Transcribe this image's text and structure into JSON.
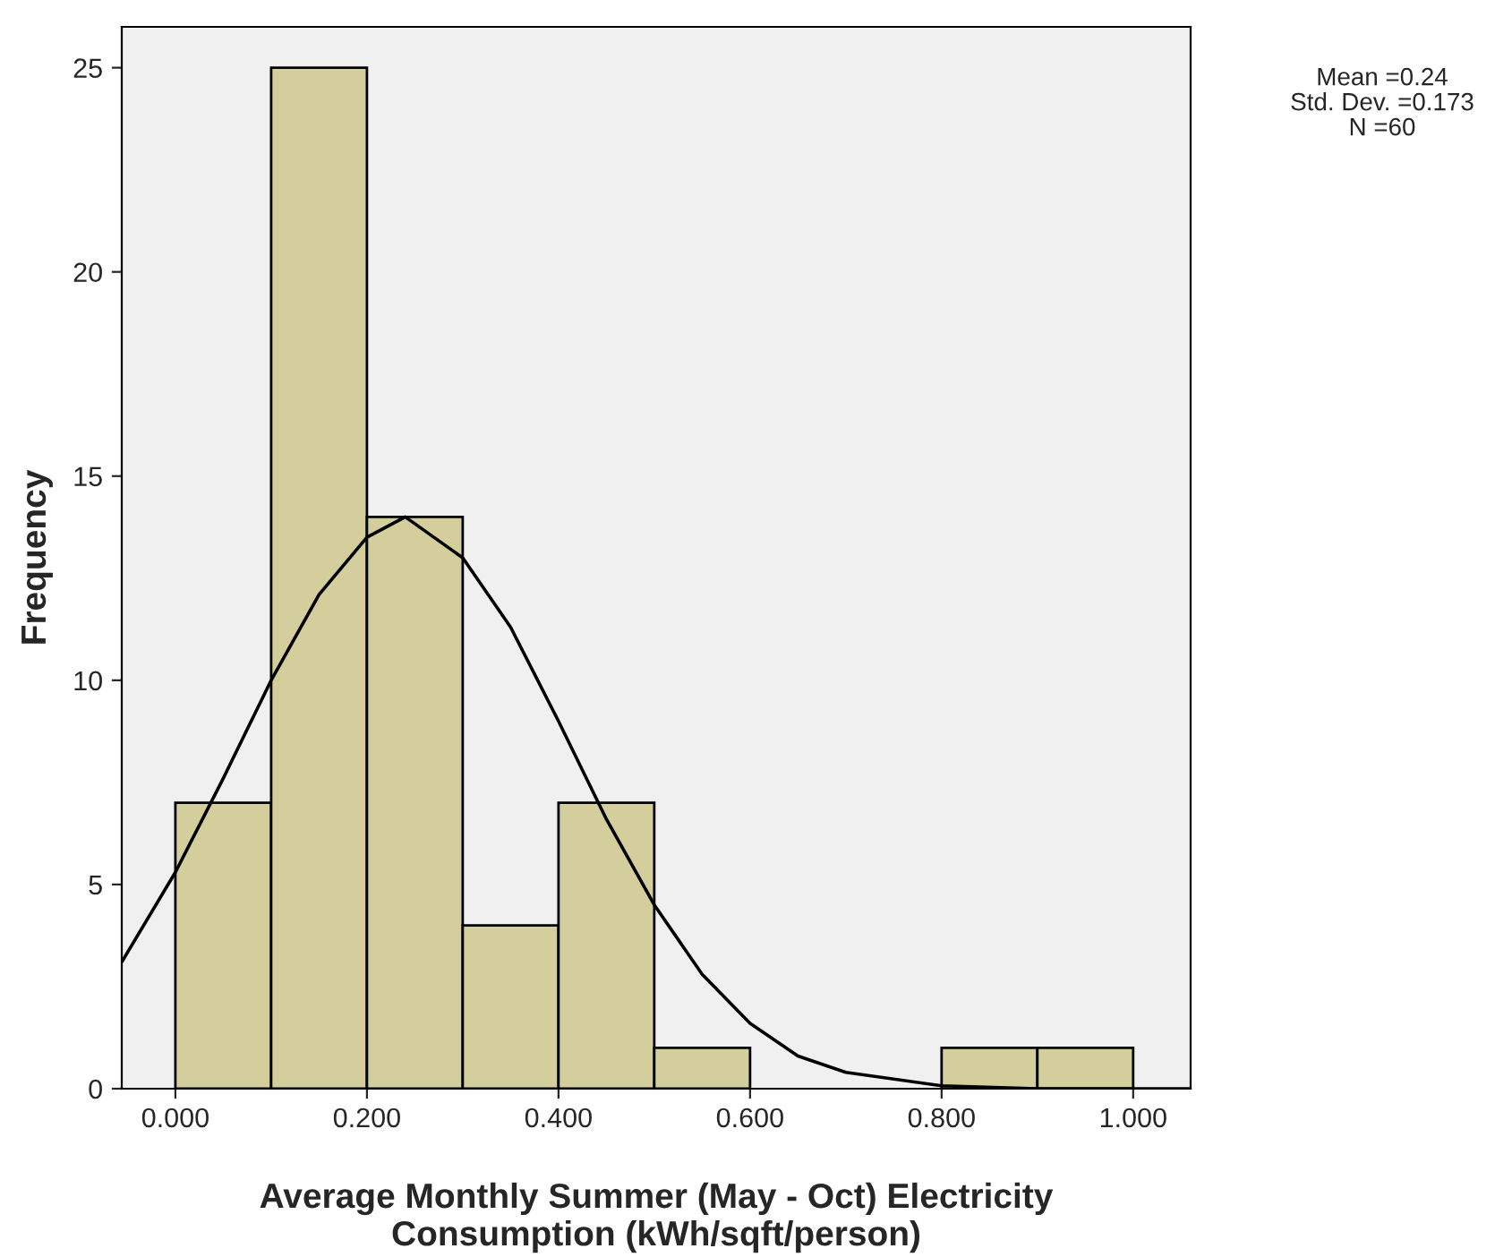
{
  "chart_data": {
    "type": "histogram",
    "xlabel": "Average Monthly Summer (May - Oct) Electricity\nConsumption (kWh/sqft/person)",
    "ylabel": "Frequency",
    "bins": [
      0.0,
      0.1,
      0.2,
      0.3,
      0.4,
      0.5,
      0.6,
      0.7,
      0.8,
      0.9,
      1.0
    ],
    "values": [
      7,
      25,
      14,
      4,
      7,
      1,
      0,
      0,
      1,
      1
    ],
    "color": "#d3ce9c",
    "series": [
      {
        "type": "line",
        "color": "#000000",
        "x": [
          -0.056,
          0.0,
          0.05,
          0.1,
          0.15,
          0.2,
          0.24,
          0.3,
          0.35,
          0.4,
          0.45,
          0.5,
          0.55,
          0.6,
          0.65,
          0.7,
          0.8,
          0.9,
          1.06
        ],
        "values": [
          3.1,
          5.3,
          7.6,
          10.0,
          12.1,
          13.5,
          14.0,
          13.0,
          11.3,
          9.0,
          6.6,
          4.5,
          2.8,
          1.6,
          0.8,
          0.4,
          0.07,
          0.0,
          0.0
        ]
      }
    ],
    "xlim": [
      -0.056,
      1.06
    ],
    "ylim": [
      0,
      26
    ],
    "xticks": [
      {
        "value": 0,
        "label": "0.000"
      },
      {
        "value": 0.2,
        "label": "0.200"
      },
      {
        "value": 0.4,
        "label": "0.400"
      },
      {
        "value": 0.6,
        "label": "0.600"
      },
      {
        "value": 0.8,
        "label": "0.800"
      },
      {
        "value": 1.0,
        "label": "1.000"
      }
    ],
    "yticks": [
      0,
      5,
      10,
      15,
      20,
      25
    ],
    "annotations": [
      "Mean =0.24",
      "Std. Dev. =0.173",
      "N =60"
    ]
  }
}
